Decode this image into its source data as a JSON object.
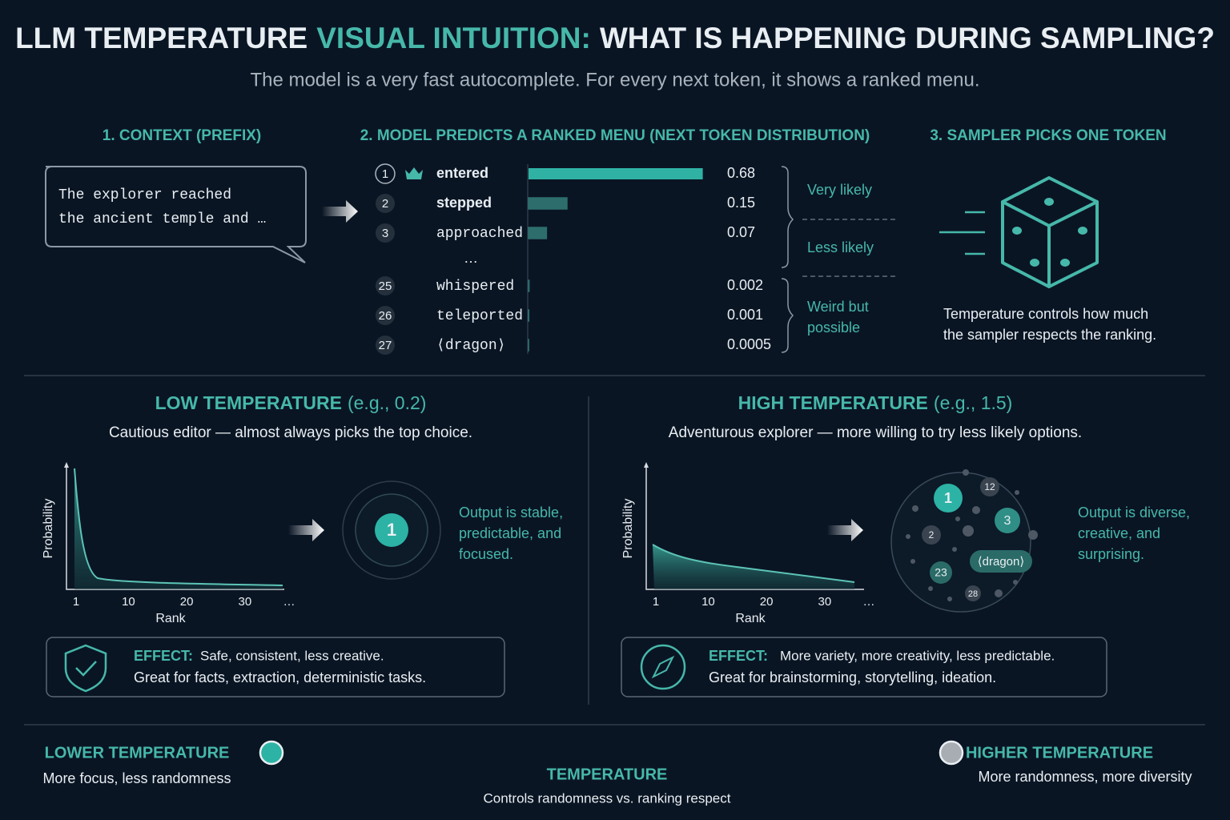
{
  "title": {
    "start": "LLM TEMPERATURE",
    "highlight": "VISUAL INTUITION:",
    "end": "WHAT IS HAPPENING DURING SAMPLING?"
  },
  "subtitle": "The model is a very fast autocomplete. For every next token, it shows a ranked menu.",
  "steps": [
    {
      "heading": "1. CONTEXT (PREFIX)",
      "lines": [
        "The explorer reached",
        "the ancient temple and …"
      ]
    },
    {
      "heading": "2. MODEL PREDICTS A RANKED MENU (NEXT TOKEN DISTRIBUTION)"
    },
    {
      "heading": "3. SAMPLER PICKS ONE TOKEN",
      "lines": [
        "Temperature controls how much",
        "the sampler respects the ranking."
      ]
    }
  ],
  "menu": {
    "rows": [
      {
        "rank": 1,
        "token": "entered",
        "probability": 0.68
      },
      {
        "rank": 2,
        "token": "stepped",
        "probability": 0.15
      },
      {
        "rank": 3,
        "token": "approached",
        "probability": 0.07
      },
      {
        "rank": 25,
        "token": "whispered",
        "probability": 0.002
      },
      {
        "rank": 26,
        "token": "teleported",
        "probability": 0.001
      },
      {
        "rank": 27,
        "token": "⟨dragon⟩",
        "probability": 0.0005
      }
    ],
    "ellipsis": "…",
    "groups": [
      [
        "Very likely"
      ],
      [
        "Less likely"
      ],
      [
        "Weird but",
        "possible"
      ]
    ]
  },
  "low": {
    "heading": "LOW TEMPERATURE",
    "example": "(e.g., 0.2)",
    "description": "Cautious editor — almost always picks the top choice.",
    "y_label": "Probability",
    "x_label": "Rank",
    "xticks": [
      1,
      10,
      20,
      30
    ],
    "x_more": "…",
    "pick": 1,
    "output": [
      "Output is stable,",
      "predictable, and",
      "focused."
    ],
    "effect_label": "EFFECT:",
    "effect": [
      "Safe, consistent, less creative.",
      "Great for facts, extraction, deterministic tasks."
    ]
  },
  "high": {
    "heading": "HIGH TEMPERATURE",
    "example": "(e.g., 1.5)",
    "description": "Adventurous explorer — more willing to try less likely options.",
    "y_label": "Probability",
    "x_label": "Rank",
    "xticks": [
      1,
      10,
      20,
      30
    ],
    "x_more": "…",
    "picks": [
      1,
      12,
      3,
      2,
      "⟨dragon⟩",
      23,
      28
    ],
    "output": [
      "Output is diverse,",
      "creative, and",
      "surprising."
    ],
    "effect_label": "EFFECT:",
    "effect": [
      "More variety, more creativity, less predictable.",
      "Great for brainstorming, storytelling, ideation."
    ]
  },
  "scale": {
    "left_title": "LOWER TEMPERATURE",
    "left_text": "More focus, less randomness",
    "center_title": "TEMPERATURE",
    "center_text": "Controls randomness vs. ranking respect",
    "right_title": "HIGHER TEMPERATURE",
    "right_text": "More randomness, more diversity"
  }
}
